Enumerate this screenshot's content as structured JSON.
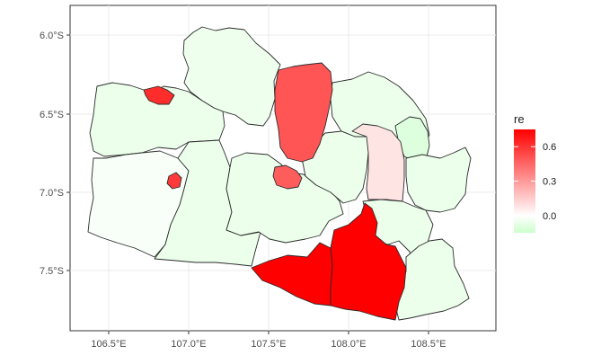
{
  "chart_data": {
    "type": "choropleth",
    "x_ticks": [
      "106.5°E",
      "107.0°E",
      "107.5°E",
      "108.0°E",
      "108.5°E"
    ],
    "y_ticks": [
      "6.0°S",
      "6.5°S",
      "7.0°S",
      "7.5°S"
    ],
    "legend": {
      "title": "re",
      "ticks": [
        "0.6",
        "0.3",
        "0.0"
      ],
      "tick_values": [
        0.6,
        0.3,
        0.0
      ],
      "range": [
        -0.15,
        0.75
      ],
      "low_color": "#ccffcc",
      "mid_color": "#ffffff",
      "high_color": "#ff0000",
      "position": "right"
    },
    "grid": true,
    "regions": [
      {
        "id": "bekasi-karawang-north",
        "value": -0.05
      },
      {
        "id": "purwakarta-subang",
        "value": 0.5
      },
      {
        "id": "indramayu",
        "value": -0.06
      },
      {
        "id": "cirebon",
        "value": -0.1
      },
      {
        "id": "majalengka",
        "value": 0.08
      },
      {
        "id": "kuningan",
        "value": -0.06
      },
      {
        "id": "bogor",
        "value": -0.06
      },
      {
        "id": "sukabumi",
        "value": -0.02
      },
      {
        "id": "cianjur",
        "value": -0.06
      },
      {
        "id": "bandung",
        "value": -0.06
      },
      {
        "id": "sumedang",
        "value": -0.06
      },
      {
        "id": "garut",
        "value": 0.75
      },
      {
        "id": "tasikmalaya",
        "value": -0.06
      },
      {
        "id": "ciamis",
        "value": -0.06
      },
      {
        "id": "depok",
        "value": 0.62
      },
      {
        "id": "sukabumi-city",
        "value": 0.58
      },
      {
        "id": "bandung-city",
        "value": 0.48
      }
    ]
  }
}
